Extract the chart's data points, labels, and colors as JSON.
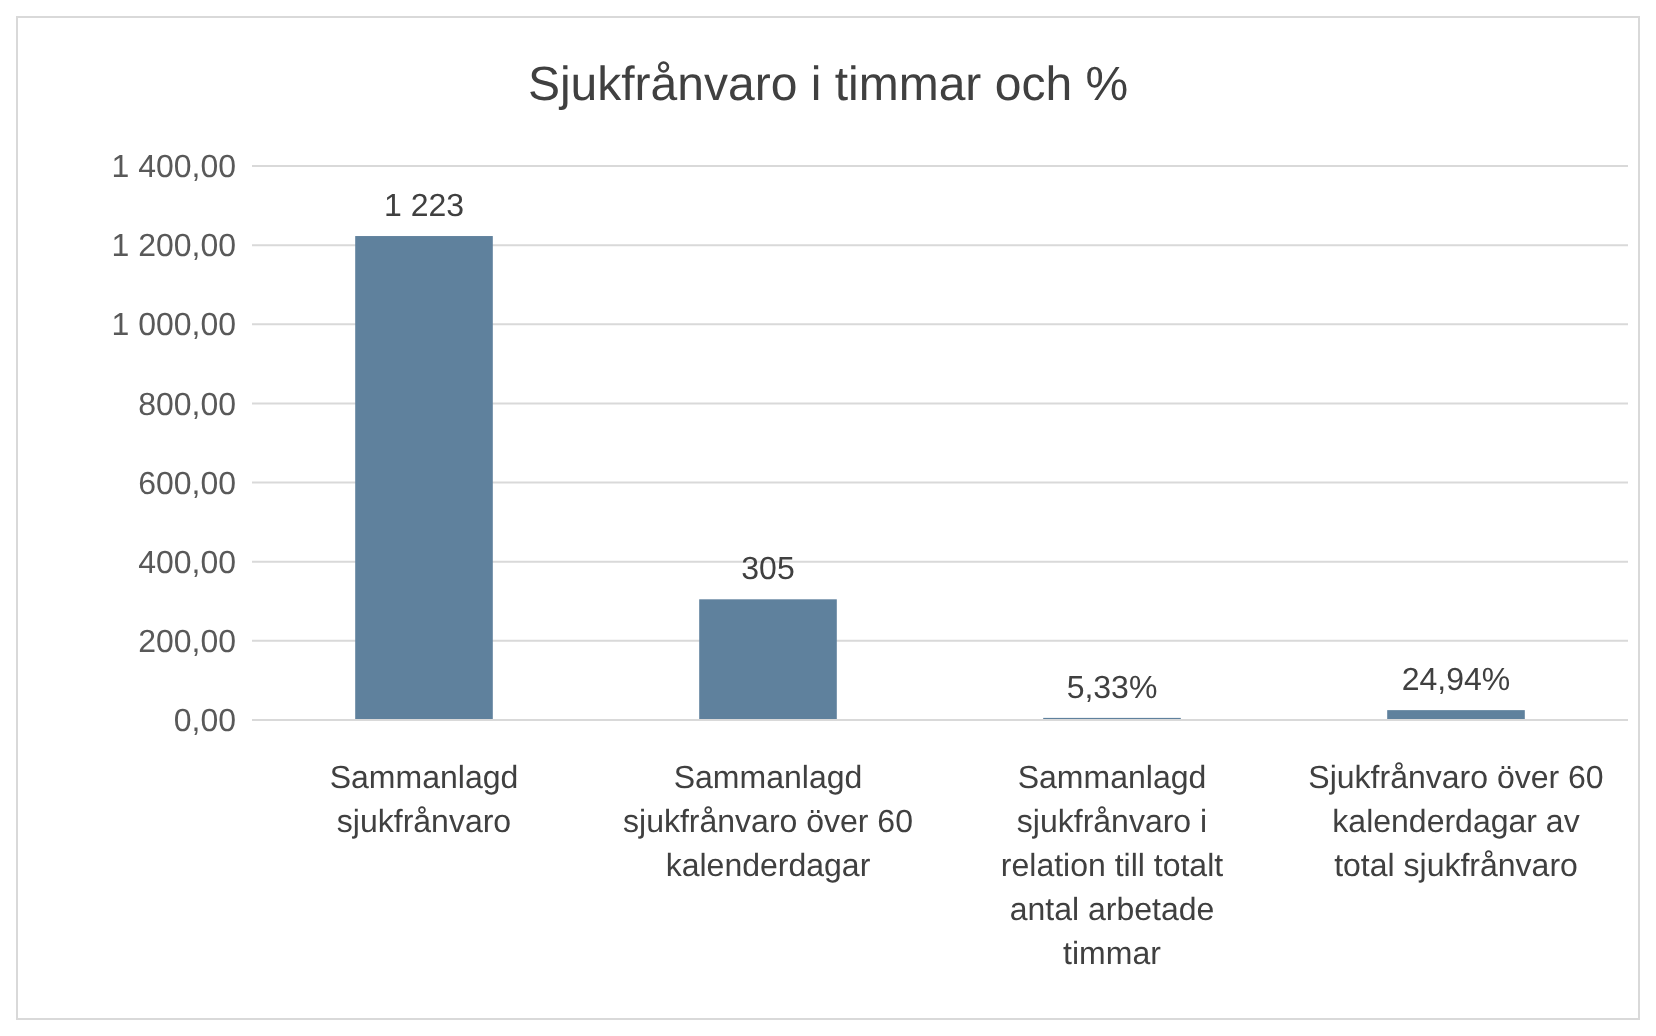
{
  "chart_data": {
    "type": "bar",
    "title": "Sjukfrånvaro i timmar och %",
    "categories": [
      "Sammanlagd sjukfrånvaro",
      "Sammanlagd sjukfrånvaro över 60 kalenderdagar",
      "Sammanlagd sjukfrånvaro i relation till totalt antal arbetade timmar",
      "Sjukfrånvaro över 60 kalenderdagar av total sjukfrånvaro"
    ],
    "values": [
      1223,
      305,
      5.33,
      24.94
    ],
    "value_labels": [
      "1 223",
      "305",
      "5,33%",
      "24,94%"
    ],
    "color": "#5f819d",
    "ylim": [
      0,
      1400
    ],
    "yticks": [
      {
        "value": 0,
        "label": "0,00"
      },
      {
        "value": 200,
        "label": "200,00"
      },
      {
        "value": 400,
        "label": "400,00"
      },
      {
        "value": 600,
        "label": "600,00"
      },
      {
        "value": 800,
        "label": "800,00"
      },
      {
        "value": 1000,
        "label": "1 000,00"
      },
      {
        "value": 1200,
        "label": "1 200,00"
      },
      {
        "value": 1400,
        "label": "1 400,00"
      }
    ],
    "grid": "y"
  }
}
